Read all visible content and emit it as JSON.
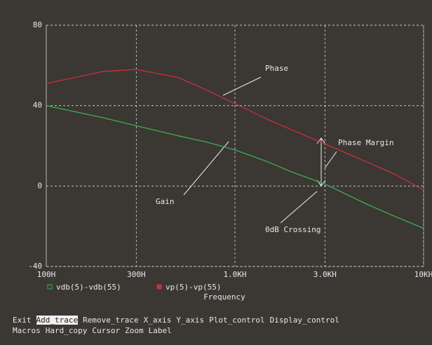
{
  "chart_data": {
    "type": "line",
    "x": [
      100,
      200,
      300,
      500,
      700,
      1000,
      1500,
      2000,
      3000,
      5000,
      7000,
      10000
    ],
    "series": [
      {
        "name": "vdb(5)-vdb(55)",
        "color": "#3fae4f",
        "values": [
          40,
          34,
          30,
          25,
          22,
          18,
          12,
          7,
          1,
          -9,
          -15,
          -21
        ]
      },
      {
        "name": "vp(5)-vp(55)",
        "color": "#c8303a",
        "values": [
          51,
          57,
          58,
          54,
          48,
          41,
          33,
          28,
          21,
          12,
          6,
          -2
        ]
      }
    ],
    "xlim": [
      100,
      10000
    ],
    "xlog": true,
    "xticks": [
      {
        "value": 100,
        "label": "100H"
      },
      {
        "value": 300,
        "label": "300H"
      },
      {
        "value": 1000,
        "label": "1.0KH"
      },
      {
        "value": 3000,
        "label": "3.0KH"
      },
      {
        "value": 10000,
        "label": "10KH"
      }
    ],
    "ylim": [
      -40,
      80
    ],
    "yticks": [
      -40,
      0,
      40,
      80
    ],
    "grid": true,
    "xlabel": "Frequency",
    "annotations": [
      "Phase",
      "Phase Margin",
      "Gain",
      "0dB Crossing"
    ]
  },
  "menu": [
    [
      "Exit",
      "Add_trace",
      "Remove_trace",
      "X_axis",
      "Y_axis",
      "Plot_control",
      "Display_control"
    ],
    [
      "Macros",
      "Hard_copy",
      "Cursor",
      "Zoom",
      "Label"
    ]
  ]
}
